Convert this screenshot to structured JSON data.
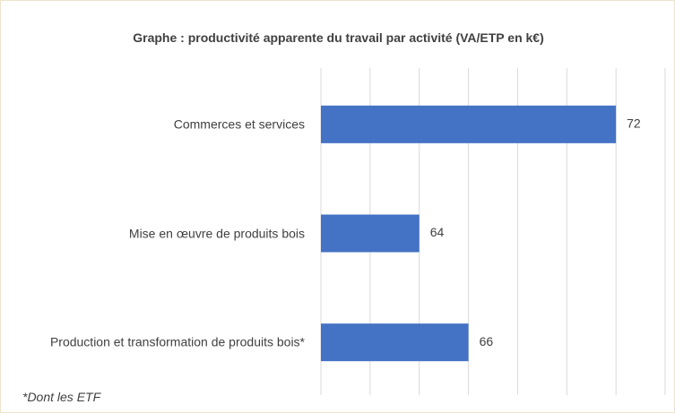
{
  "chart_data": {
    "type": "bar",
    "orientation": "horizontal",
    "title": "Graphe : productivité apparente du travail par activité (VA/ETP en k€)",
    "categories": [
      "Commerces et services",
      "Mise en œuvre de produits bois",
      "Production et transformation de produits bois*"
    ],
    "values": [
      72,
      64,
      66
    ],
    "color": "#4472c4",
    "xlim": [
      60,
      74
    ],
    "xticks": [
      60,
      62,
      64,
      66,
      68,
      70,
      72,
      74
    ],
    "grid": true,
    "footnote": "*Dont les ETF"
  }
}
